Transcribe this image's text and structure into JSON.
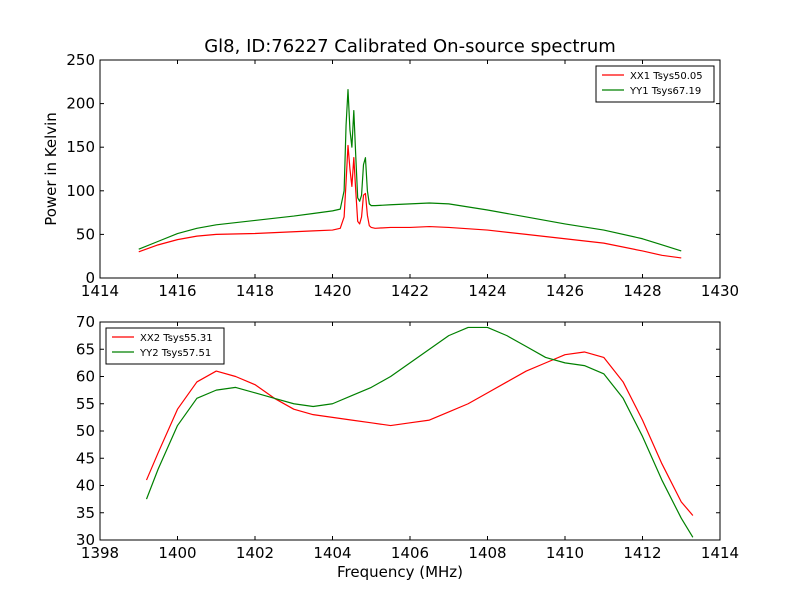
{
  "figure": {
    "title": "Gl8, ID:76227 Calibrated On-source spectrum"
  },
  "chart_data": [
    {
      "type": "line",
      "title": "Gl8, ID:76227 Calibrated On-source spectrum",
      "xlabel": "",
      "ylabel": "Power in Kelvin",
      "xlim": [
        1414,
        1430
      ],
      "ylim": [
        0,
        250
      ],
      "xticks": [
        "1414",
        "1416",
        "1418",
        "1420",
        "1422",
        "1424",
        "1426",
        "1428",
        "1430"
      ],
      "yticks": [
        "0",
        "50",
        "100",
        "150",
        "200",
        "250"
      ],
      "grid": false,
      "legend_position": "top-right",
      "series": [
        {
          "name": "XX1 Tsys50.05",
          "color": "#ff0000",
          "x": [
            1415,
            1415.5,
            1416,
            1416.5,
            1417,
            1418,
            1419,
            1419.5,
            1420,
            1420.2,
            1420.3,
            1420.35,
            1420.4,
            1420.45,
            1420.5,
            1420.55,
            1420.6,
            1420.65,
            1420.7,
            1420.75,
            1420.8,
            1420.85,
            1420.9,
            1420.95,
            1421.0,
            1421.1,
            1421.5,
            1422,
            1422.5,
            1423,
            1424,
            1425,
            1426,
            1427,
            1428,
            1428.5,
            1429
          ],
          "y": [
            30,
            38,
            44,
            48,
            50,
            51,
            53,
            54,
            55,
            57,
            70,
            110,
            152,
            125,
            105,
            138,
            100,
            65,
            62,
            70,
            95,
            97,
            72,
            60,
            58,
            57,
            58,
            58,
            59,
            58,
            55,
            50,
            45,
            40,
            31,
            26,
            23
          ]
        },
        {
          "name": "YY1 Tsys67.19",
          "color": "#008000",
          "x": [
            1415,
            1415.5,
            1416,
            1416.5,
            1417,
            1418,
            1419,
            1419.5,
            1420,
            1420.2,
            1420.3,
            1420.35,
            1420.4,
            1420.45,
            1420.5,
            1420.55,
            1420.6,
            1420.65,
            1420.7,
            1420.75,
            1420.8,
            1420.85,
            1420.9,
            1420.95,
            1421.0,
            1421.1,
            1421.5,
            1422,
            1422.5,
            1423,
            1424,
            1425,
            1426,
            1427,
            1428,
            1428.5,
            1429
          ],
          "y": [
            33,
            42,
            51,
            57,
            61,
            66,
            71,
            74,
            77,
            79,
            100,
            175,
            216,
            170,
            150,
            192,
            140,
            92,
            88,
            95,
            130,
            138,
            100,
            85,
            83,
            83,
            84,
            85,
            86,
            85,
            78,
            70,
            62,
            55,
            45,
            38,
            31
          ]
        }
      ]
    },
    {
      "type": "line",
      "title": "",
      "xlabel": "Frequency (MHz)",
      "ylabel": "",
      "xlim": [
        1398,
        1414
      ],
      "ylim": [
        30,
        70
      ],
      "xticks": [
        "1398",
        "1400",
        "1402",
        "1404",
        "1406",
        "1408",
        "1410",
        "1412",
        "1414"
      ],
      "yticks": [
        "30",
        "35",
        "40",
        "45",
        "50",
        "55",
        "60",
        "65",
        "70"
      ],
      "grid": false,
      "legend_position": "top-left",
      "series": [
        {
          "name": "XX2 Tsys55.31",
          "color": "#ff0000",
          "x": [
            1399.2,
            1399.5,
            1400,
            1400.5,
            1401,
            1401.5,
            1402,
            1402.5,
            1403,
            1403.5,
            1404,
            1404.5,
            1405,
            1405.5,
            1406,
            1406.5,
            1407,
            1407.5,
            1408,
            1408.5,
            1409,
            1409.5,
            1410,
            1410.5,
            1411,
            1411.5,
            1412,
            1412.5,
            1413,
            1413.3
          ],
          "y": [
            41,
            46,
            54,
            59,
            61,
            60,
            58.5,
            56,
            54,
            53,
            52.5,
            52,
            51.5,
            51,
            51.5,
            52,
            53.5,
            55,
            57,
            59,
            61,
            62.5,
            64,
            64.5,
            63.5,
            59,
            52,
            44,
            37,
            34.5
          ]
        },
        {
          "name": "YY2 Tsys57.51",
          "color": "#008000",
          "x": [
            1399.2,
            1399.5,
            1400,
            1400.5,
            1401,
            1401.5,
            1402,
            1402.5,
            1403,
            1403.5,
            1404,
            1404.5,
            1405,
            1405.5,
            1406,
            1406.5,
            1407,
            1407.5,
            1408,
            1408.5,
            1409,
            1409.5,
            1410,
            1410.5,
            1411,
            1411.5,
            1412,
            1412.5,
            1413,
            1413.3
          ],
          "y": [
            37.5,
            43,
            51,
            56,
            57.5,
            58,
            57,
            56,
            55,
            54.5,
            55,
            56.5,
            58,
            60,
            62.5,
            65,
            67.5,
            69,
            69,
            67.5,
            65.5,
            63.5,
            62.5,
            62,
            60.5,
            56,
            49,
            41,
            34,
            30.5
          ]
        }
      ]
    }
  ]
}
